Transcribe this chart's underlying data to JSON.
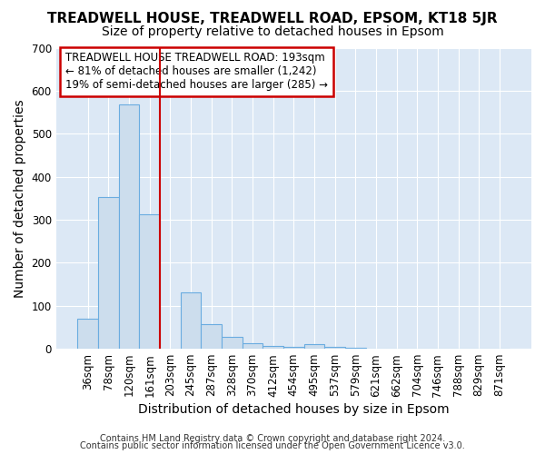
{
  "title": "TREADWELL HOUSE, TREADWELL ROAD, EPSOM, KT18 5JR",
  "subtitle": "Size of property relative to detached houses in Epsom",
  "xlabel": "Distribution of detached houses by size in Epsom",
  "ylabel": "Number of detached properties",
  "categories": [
    "36sqm",
    "78sqm",
    "120sqm",
    "161sqm",
    "203sqm",
    "245sqm",
    "287sqm",
    "328sqm",
    "370sqm",
    "412sqm",
    "454sqm",
    "495sqm",
    "537sqm",
    "579sqm",
    "621sqm",
    "662sqm",
    "704sqm",
    "746sqm",
    "788sqm",
    "829sqm",
    "871sqm"
  ],
  "values": [
    70,
    352,
    568,
    312,
    0,
    130,
    57,
    27,
    13,
    7,
    5,
    11,
    4,
    3,
    0,
    0,
    0,
    0,
    0,
    0,
    0
  ],
  "bar_color": "#ccdded",
  "bar_edge_color": "#6aace0",
  "vline_color": "#cc0000",
  "ylim": [
    0,
    700
  ],
  "yticks": [
    0,
    100,
    200,
    300,
    400,
    500,
    600,
    700
  ],
  "annotation_line1": "TREADWELL HOUSE TREADWELL ROAD: 193sqm",
  "annotation_line2": "← 81% of detached houses are smaller (1,242)",
  "annotation_line3": "19% of semi-detached houses are larger (285) →",
  "annotation_box_color": "#ffffff",
  "annotation_box_edge": "#cc0000",
  "footer1": "Contains HM Land Registry data © Crown copyright and database right 2024.",
  "footer2": "Contains public sector information licensed under the Open Government Licence v3.0.",
  "fig_background": "#ffffff",
  "plot_background": "#dce8f5",
  "grid_color": "#ffffff",
  "title_fontsize": 11,
  "subtitle_fontsize": 10,
  "tick_fontsize": 8.5,
  "label_fontsize": 10,
  "footer_fontsize": 7,
  "annotation_fontsize": 8.5
}
